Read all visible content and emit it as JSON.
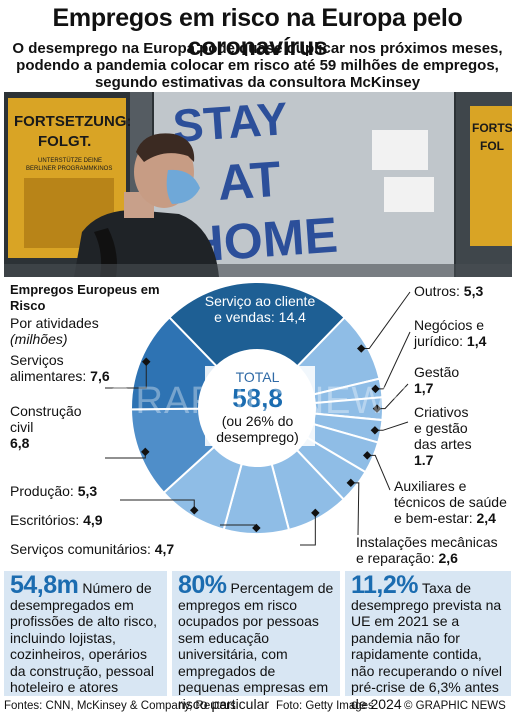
{
  "title": "Empregos em risco na Europa pelo coronavírus",
  "subtitle_lines": [
    "O desemprego na Europa pode quase duplicar nos próximos meses,",
    "podendo a pandemia colocar em risco até 59 milhões de empregos,",
    "segundo estimativas da consultora McKinsey"
  ],
  "photo": {
    "poster_left": [
      "FORTSETZUNG:",
      "FOLGT."
    ],
    "poster_left_small": [
      "UNTERSTÜTZE DEINE",
      "BERLINER PROGRAMMKINOS"
    ],
    "window_lines": [
      "STAY",
      "AT",
      "HOME"
    ],
    "poster_right": [
      "FORTSE",
      "FOL"
    ]
  },
  "chart_data": {
    "type": "pie",
    "title": "Empregos Europeus em Risco",
    "subtitle": "Por atividades",
    "unit_note": "(milhões)",
    "center": {
      "label": "TOTAL",
      "value": "58,8",
      "note_lines": [
        "(ou 26% do",
        "desemprego)"
      ]
    },
    "slices": [
      {
        "name": "Serviço ao cliente e vendas",
        "value": 14.4,
        "color": "#1e5f94"
      },
      {
        "name": "Outros",
        "value": 5.3,
        "color": "#8fbde6"
      },
      {
        "name": "Negócios e jurídico",
        "value": 1.4,
        "color": "#8fbde6"
      },
      {
        "name": "Gestão",
        "value": 1.7,
        "color": "#8fbde6"
      },
      {
        "name": "Criativos e gestão das artes",
        "value": 1.7,
        "color": "#8fbde6"
      },
      {
        "name": "Auxiliares e técnicos de saúde e bem-estar",
        "value": 2.4,
        "color": "#8fbde6"
      },
      {
        "name": "Instalações mecânicas e reparação",
        "value": 2.6,
        "color": "#8fbde6"
      },
      {
        "name": "Serviços comunitários",
        "value": 4.7,
        "color": "#8fbde6"
      },
      {
        "name": "Escritórios",
        "value": 4.9,
        "color": "#8fbde6"
      },
      {
        "name": "Produção",
        "value": 5.3,
        "color": "#8fbde6"
      },
      {
        "name": "Construção civil",
        "value": 6.8,
        "color": "#4f8ec9"
      },
      {
        "name": "Serviços alimentares",
        "value": 7.6,
        "color": "#2e73b3"
      }
    ]
  },
  "labels": {
    "servico": {
      "line1": "Serviço ao cliente",
      "line2": "e vendas:",
      "value": "14,4"
    },
    "outros": {
      "name": "Outros:",
      "value": "5,3"
    },
    "negocios": {
      "line1": "Negócios e",
      "line2": "jurídico:",
      "value": "1,4"
    },
    "gestao": {
      "name": "Gestão",
      "value": "1,7"
    },
    "criativos": {
      "line1": "Criativos",
      "line2": "e gestão",
      "line3": "das artes",
      "value": "1.7"
    },
    "auxiliares": {
      "line1": "Auxiliares e",
      "line2": "técnicos de saúde",
      "line3": "e bem-estar:",
      "value": "2,4"
    },
    "instalacoes": {
      "line1": "Instalações mecânicas",
      "line2": "e reparação:",
      "value": "2,6"
    },
    "comunitarios": {
      "name": "Serviços comunitários:",
      "value": "4,7"
    },
    "escritorios": {
      "name": "Escritórios:",
      "value": "4,9"
    },
    "producao": {
      "name": "Produção:",
      "value": "5,3"
    },
    "construcao": {
      "line1": "Construção",
      "line2": "civil",
      "value": "6,8"
    },
    "alimentares": {
      "line1": "Serviços",
      "line2": "alimentares:",
      "value": "7,6"
    }
  },
  "panels": [
    {
      "big": "54,8m",
      "text": "Número de desempregados em profissões de alto risco, incluindo lojistas, cozinheiros, operários da construção, pessoal hoteleiro e atores"
    },
    {
      "big": "80%",
      "text": "Percentagem de empregos em risco ocupados por pessoas sem educação universitária, com empregados de pequenas empresas em risco particular"
    },
    {
      "big": "11,2%",
      "text": "Taxa de desemprego prevista na UE em 2021 se a pandemia não for rapidamente contida, não recuperando o nível pré-crise de 6,3% antes de 2024"
    }
  ],
  "footer": {
    "sources": "Fontes: CNN, McKinsey & Company, Reuters",
    "photo": "Foto: Getty Images",
    "brand": "© GRAPHIC NEWS"
  },
  "watermark": "GRAPHIC NEWS",
  "colors": {
    "accent": "#1b6cb0",
    "panel_bg": "#d8e6f3",
    "dark_slice": "#1e5f94"
  }
}
